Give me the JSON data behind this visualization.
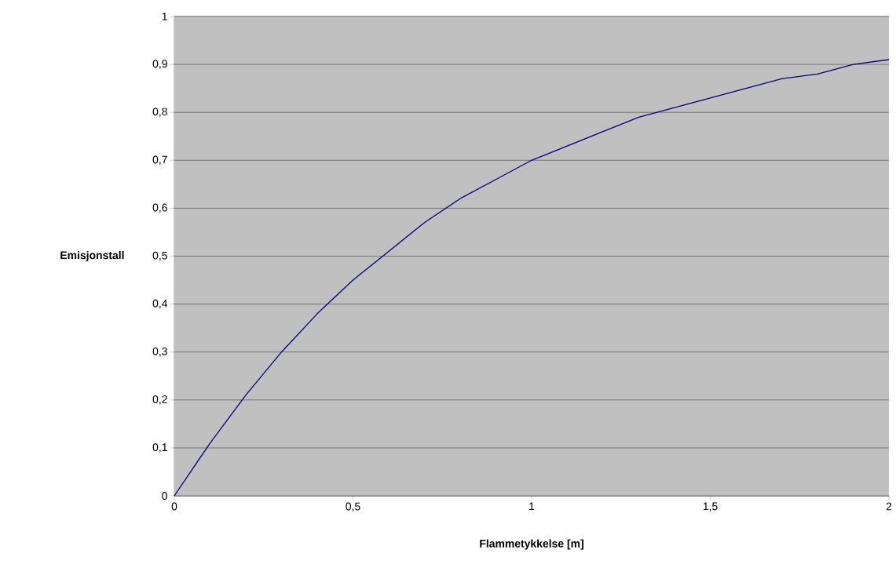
{
  "chart_data": {
    "type": "line",
    "xlabel": "Flammetykkelse [m]",
    "ylabel": "Emisjonstall",
    "x": [
      0,
      0.1,
      0.2,
      0.3,
      0.4,
      0.5,
      0.6,
      0.7,
      0.8,
      0.9,
      1.0,
      1.1,
      1.2,
      1.3,
      1.4,
      1.5,
      1.6,
      1.7,
      1.8,
      1.9,
      2.0
    ],
    "series": [
      {
        "color": "#000080",
        "values": [
          0,
          0.11,
          0.21,
          0.3,
          0.38,
          0.45,
          0.51,
          0.57,
          0.62,
          0.66,
          0.7,
          0.73,
          0.76,
          0.79,
          0.81,
          0.83,
          0.85,
          0.87,
          0.88,
          0.9,
          0.91
        ]
      }
    ],
    "xlim": [
      0,
      2
    ],
    "ylim": [
      0,
      1
    ],
    "xticks": [
      0,
      {
        "value": 0.5,
        "label": "0,5"
      },
      1,
      {
        "value": 1.5,
        "label": "1,5"
      },
      2
    ],
    "yticks": [
      0,
      {
        "value": 0.1,
        "label": "0,1"
      },
      {
        "value": 0.2,
        "label": "0,2"
      },
      {
        "value": 0.3,
        "label": "0,3"
      },
      {
        "value": 0.4,
        "label": "0,4"
      },
      {
        "value": 0.5,
        "label": "0,5"
      },
      {
        "value": 0.6,
        "label": "0,6"
      },
      {
        "value": 0.7,
        "label": "0,7"
      },
      {
        "value": 0.8,
        "label": "0,8"
      },
      {
        "value": 0.9,
        "label": "0,9"
      },
      1
    ],
    "grid": "y",
    "marker": "none",
    "line_style": "solid"
  }
}
